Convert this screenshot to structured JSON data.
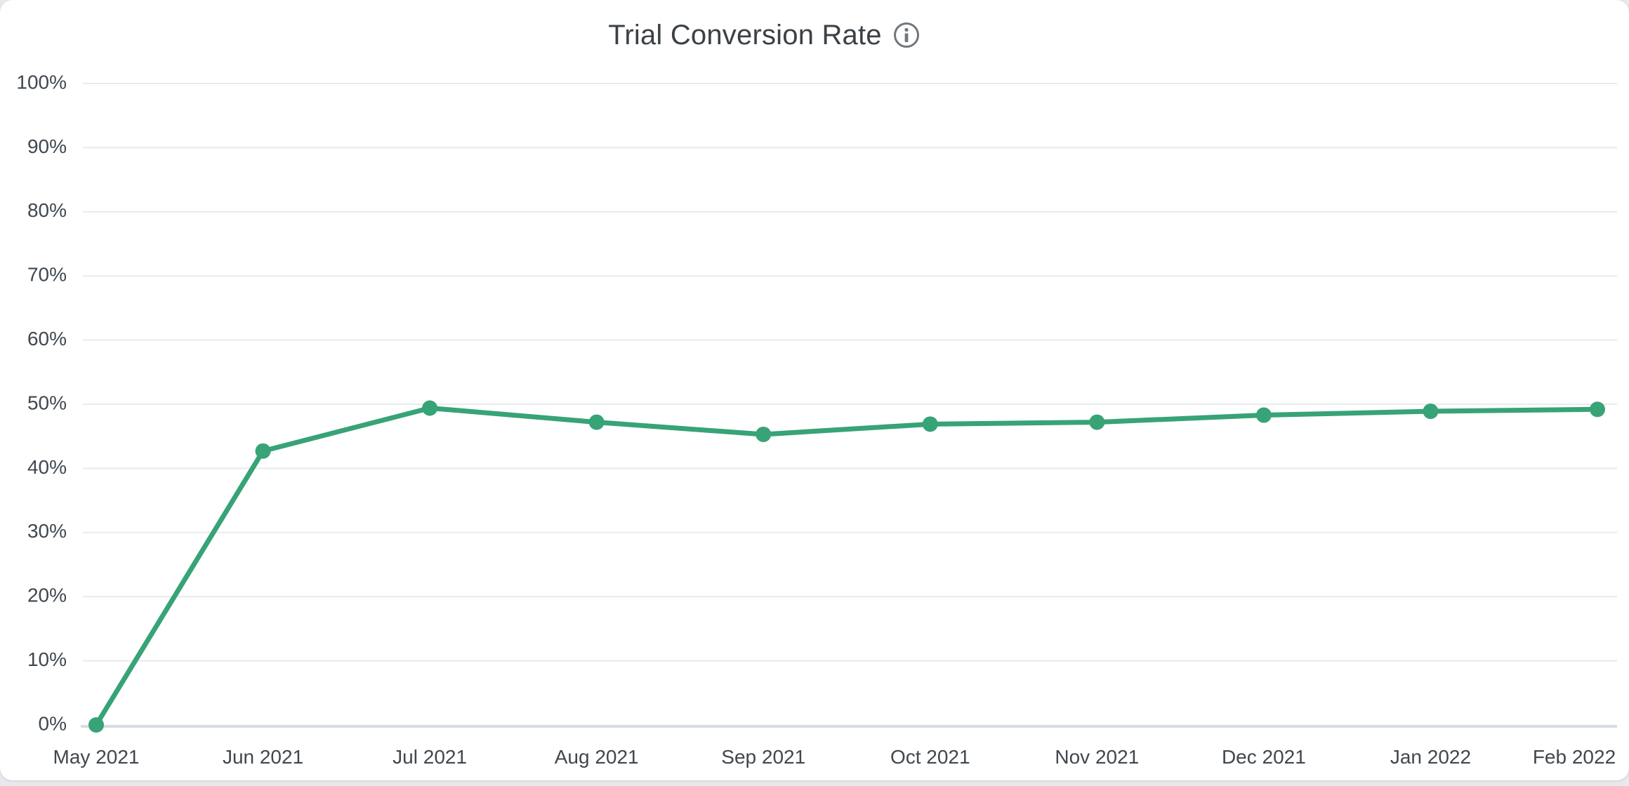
{
  "header": {
    "title": "Trial Conversion Rate"
  },
  "chart_data": {
    "type": "line",
    "title": "Trial Conversion Rate",
    "categories": [
      "May 2021",
      "Jun 2021",
      "Jul 2021",
      "Aug 2021",
      "Sep 2021",
      "Oct 2021",
      "Nov 2021",
      "Dec 2021",
      "Jan 2022",
      "Feb 2022"
    ],
    "values": [
      0,
      42.7,
      49.4,
      47.2,
      45.3,
      46.9,
      47.2,
      48.3,
      48.9,
      49.2
    ],
    "unit": "%",
    "xlabel": "",
    "ylabel": "",
    "ylim": [
      0,
      100
    ],
    "y_ticks": [
      0,
      10,
      20,
      30,
      40,
      50,
      60,
      70,
      80,
      90,
      100
    ],
    "y_tick_labels": [
      "0%",
      "10%",
      "20%",
      "30%",
      "40%",
      "50%",
      "60%",
      "70%",
      "80%",
      "90%",
      "100%"
    ],
    "grid": true,
    "legend": "none",
    "marker": "circle"
  },
  "colors": {
    "line": "#37a376",
    "marker": "#37a376",
    "grid": "#e9eaed",
    "axis_line": "#d6dce4",
    "tick_label": "#40474e",
    "title": "#3a4147",
    "info_icon": "#71767e",
    "card_background": "#ffffff",
    "page_background": "#e7e9ec"
  }
}
